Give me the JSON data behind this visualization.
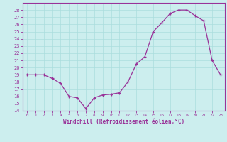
{
  "x": [
    0,
    1,
    2,
    3,
    4,
    5,
    6,
    7,
    8,
    9,
    10,
    11,
    12,
    13,
    14,
    15,
    16,
    17,
    18,
    19,
    20,
    21,
    22,
    23
  ],
  "y": [
    19.0,
    19.0,
    19.0,
    18.5,
    17.8,
    16.0,
    15.8,
    14.3,
    15.8,
    16.2,
    16.3,
    16.5,
    18.0,
    20.5,
    21.5,
    25.0,
    26.2,
    27.5,
    28.0,
    28.0,
    27.2,
    26.5,
    21.0,
    19.0
  ],
  "line_color": "#993399",
  "marker": "+",
  "marker_color": "#993399",
  "bg_color": "#cceeee",
  "grid_color": "#aadddd",
  "axis_color": "#993399",
  "xlabel": "Windchill (Refroidissement éolien,°C)",
  "ylim": [
    14,
    29
  ],
  "xlim": [
    -0.5,
    23.5
  ],
  "yticks": [
    14,
    15,
    16,
    17,
    18,
    19,
    20,
    21,
    22,
    23,
    24,
    25,
    26,
    27,
    28
  ],
  "xticks": [
    0,
    1,
    2,
    3,
    4,
    5,
    6,
    7,
    8,
    9,
    10,
    11,
    12,
    13,
    14,
    15,
    16,
    17,
    18,
    19,
    20,
    21,
    22,
    23
  ]
}
